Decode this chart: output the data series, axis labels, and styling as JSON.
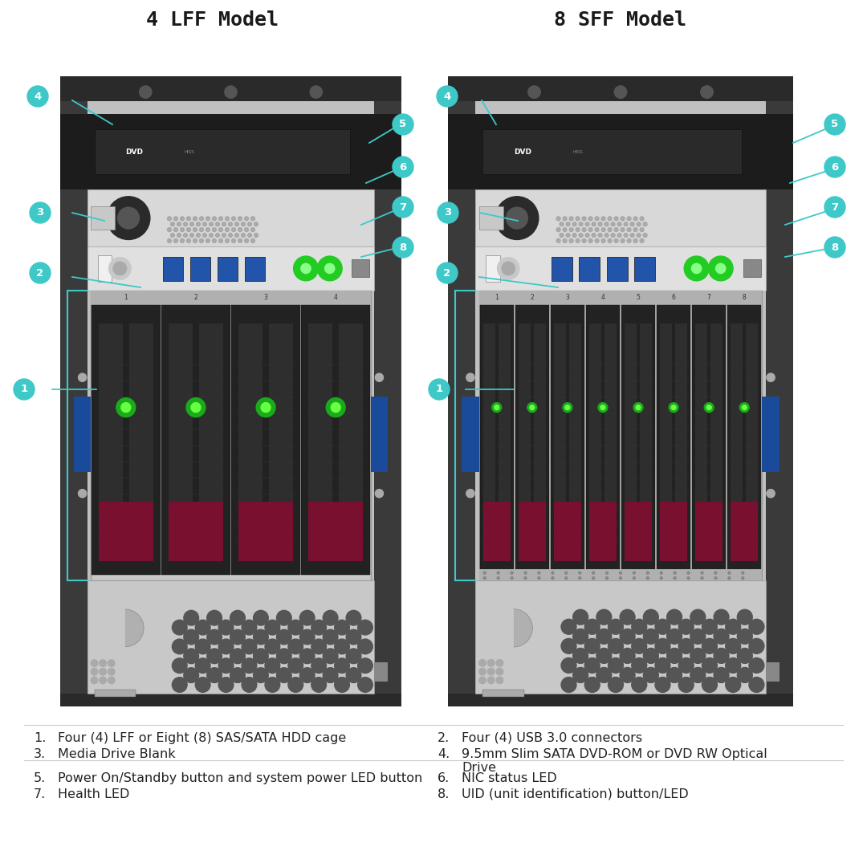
{
  "title_left": "4 LFF Model",
  "title_right": "8 SFF Model",
  "background_color": "#ffffff",
  "callout_color": "#3ec8c8",
  "line_color": "#3ec8c8",
  "title_fontsize": 18,
  "legend_fontsize": 11.5,
  "legend_items_col1": [
    {
      "num": "1.",
      "text": "Four (4) LFF or Eight (8) SAS/SATA HDD cage"
    },
    {
      "num": "3.",
      "text": "Media Drive Blank"
    },
    {
      "num": "5.",
      "text": "Power On/Standby button and system power LED button"
    },
    {
      "num": "7.",
      "text": "Health LED"
    }
  ],
  "legend_items_col2": [
    {
      "num": "2.",
      "text": "Four (4) USB 3.0 connectors"
    },
    {
      "num": "4.",
      "text": "9.5mm Slim SATA DVD-ROM or DVD RW Optical\nDrive"
    },
    {
      "num": "6.",
      "text": "NIC status LED"
    },
    {
      "num": "8.",
      "text": "UID (unit identification) button/LED"
    }
  ]
}
